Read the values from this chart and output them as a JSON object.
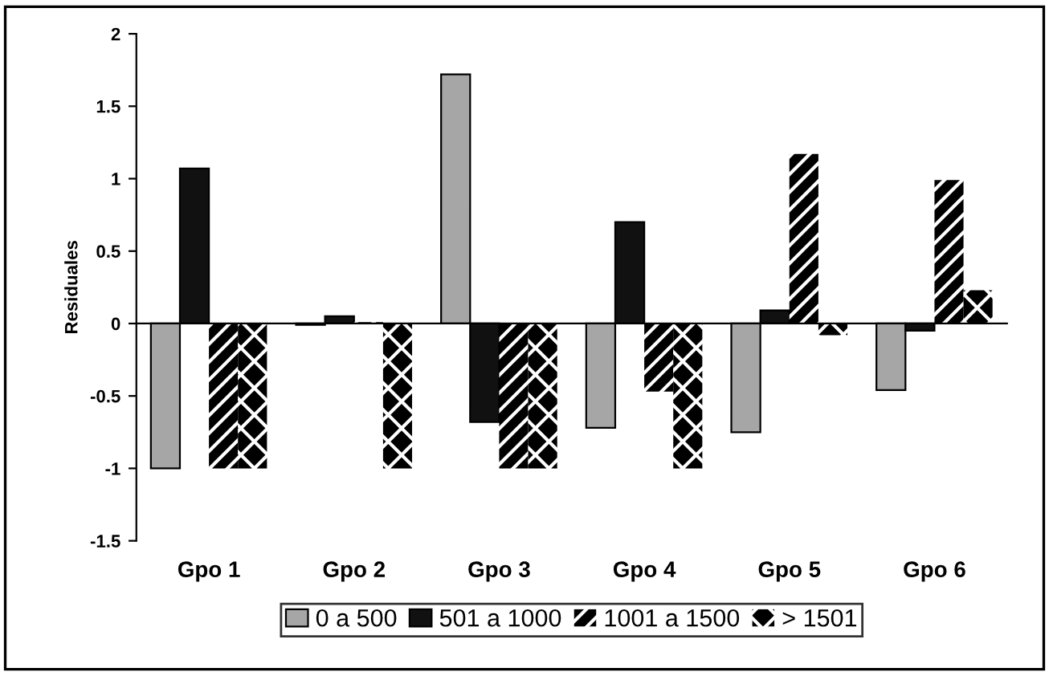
{
  "chart_data": {
    "type": "bar",
    "ylabel": "Residuales",
    "categories": [
      "Gpo 1",
      "Gpo 2",
      "Gpo 3",
      "Gpo 4",
      "Gpo 5",
      "Gpo 6"
    ],
    "series": [
      {
        "name": "0 a 500",
        "color": "#a6a6a6",
        "values": [
          -1,
          -0.01,
          1.72,
          -0.72,
          -0.75,
          -0.46
        ]
      },
      {
        "name": "501 a 1000",
        "color": "#111111",
        "values": [
          1.07,
          0.05,
          -0.68,
          0.7,
          0.09,
          -0.05
        ]
      },
      {
        "name": "1001 a 1500",
        "color": "#000000",
        "values": [
          -1,
          0.01,
          -1,
          -0.47,
          1.17,
          0.99
        ]
      },
      {
        "name": "> 1501",
        "color": "#000000",
        "values": [
          -1,
          -1,
          -1,
          -1,
          -0.08,
          0.23
        ]
      }
    ],
    "ylim": [
      -1.5,
      2
    ],
    "yticks": [
      2,
      1.5,
      1,
      0.5,
      0,
      -0.5,
      -1,
      -1.5
    ],
    "legend": "bottom"
  }
}
